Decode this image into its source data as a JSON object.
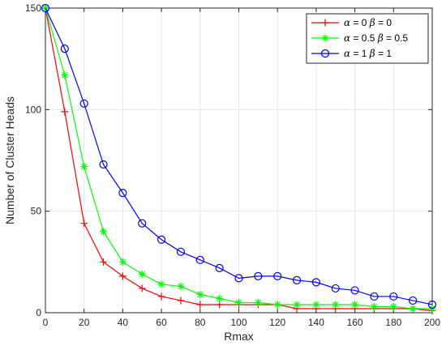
{
  "chart_data": {
    "type": "line",
    "xlabel": "Rmax",
    "ylabel": "Number of Cluster Heads",
    "xlim": [
      0,
      200
    ],
    "ylim": [
      0,
      150
    ],
    "xticks": [
      "0",
      "20",
      "40",
      "60",
      "80",
      "100",
      "120",
      "140",
      "160",
      "180",
      "200"
    ],
    "yticks": [
      "0",
      "50",
      "100",
      "150"
    ],
    "grid": true,
    "legend_position": "top-right",
    "x": [
      0,
      10,
      20,
      30,
      40,
      50,
      60,
      70,
      80,
      90,
      100,
      110,
      120,
      130,
      140,
      150,
      160,
      170,
      180,
      190,
      200
    ],
    "series": [
      {
        "name": "α = 0 β = 0",
        "name_parts": [
          "α",
          " = 0 ",
          "β",
          " = 0"
        ],
        "color": "#ff0000",
        "marker": "plus",
        "values": [
          150,
          99,
          44,
          25,
          18,
          12,
          8,
          6,
          4,
          4,
          4,
          4,
          4,
          2,
          2,
          2,
          2,
          2,
          2,
          2,
          1
        ]
      },
      {
        "name": "α = 0.5 β = 0.5",
        "name_parts": [
          "α",
          " = 0.5 ",
          "β",
          " = 0.5"
        ],
        "color": "#00ff00",
        "marker": "asterisk",
        "values": [
          150,
          117,
          72,
          40,
          25,
          19,
          14,
          13,
          9,
          7,
          5,
          5,
          4,
          4,
          4,
          4,
          4,
          3,
          3,
          2,
          2
        ]
      },
      {
        "name": "α = 1 β = 1",
        "name_parts": [
          "α",
          " = 1 ",
          "β",
          " = 1"
        ],
        "color": "#0000ff",
        "marker": "circle",
        "values": [
          150,
          130,
          103,
          73,
          59,
          44,
          36,
          30,
          26,
          22,
          17,
          18,
          18,
          16,
          15,
          12,
          11,
          8,
          8,
          6,
          4
        ]
      }
    ]
  }
}
